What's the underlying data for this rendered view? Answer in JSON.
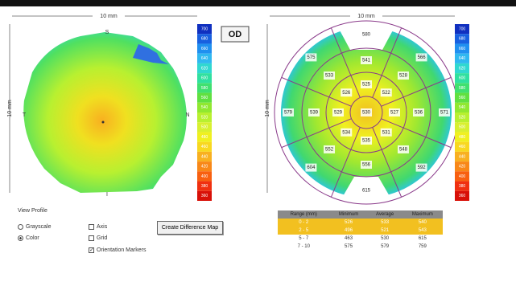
{
  "left_map": {
    "width_label": "10 mm",
    "height_label": "10 mm",
    "markers": {
      "top": "S",
      "bottom": "I",
      "left": "T",
      "right": "N"
    }
  },
  "od_button": "OD",
  "right_map": {
    "width_label": "10 mm",
    "height_label": "10 mm",
    "center": "530",
    "ring1": [
      "525",
      "522",
      "527",
      "531",
      "535",
      "534",
      "529",
      "526"
    ],
    "ring2": [
      "541",
      "528",
      "536",
      "548",
      "556",
      "552",
      "539",
      "533"
    ],
    "ring3": [
      "580",
      "566",
      "571",
      "592",
      "615",
      "604",
      "579",
      "575"
    ]
  },
  "scale": {
    "labels": [
      "700",
      "680",
      "660",
      "640",
      "620",
      "600",
      "580",
      "560",
      "540",
      "520",
      "500",
      "480",
      "460",
      "440",
      "420",
      "400",
      "380",
      "360"
    ],
    "colors": [
      "#1030c0",
      "#1860e0",
      "#2090f0",
      "#30b8f0",
      "#30d8d0",
      "#30e0a0",
      "#40e070",
      "#60e040",
      "#90e830",
      "#b8f030",
      "#d8f030",
      "#f0f020",
      "#f8d820",
      "#f8b020",
      "#f88818",
      "#f86010",
      "#f03010",
      "#d81008"
    ]
  },
  "controls": {
    "view_profile": "View Profile",
    "grayscale": "Grayscale",
    "color": "Color",
    "axis": "Axis",
    "grid": "Grid",
    "orientation": "Orientation Markers",
    "create": "Create Difference Map"
  },
  "table": {
    "header": [
      "Range (mm)",
      "Minimum",
      "Average",
      "Maximum"
    ],
    "rows": [
      [
        "0 - 2",
        "526",
        "533",
        "540"
      ],
      [
        "2 - 5",
        "496",
        "521",
        "543"
      ],
      [
        "5 - 7",
        "463",
        "530",
        "615"
      ],
      [
        "7 - 10",
        "575",
        "579",
        "759"
      ]
    ]
  }
}
